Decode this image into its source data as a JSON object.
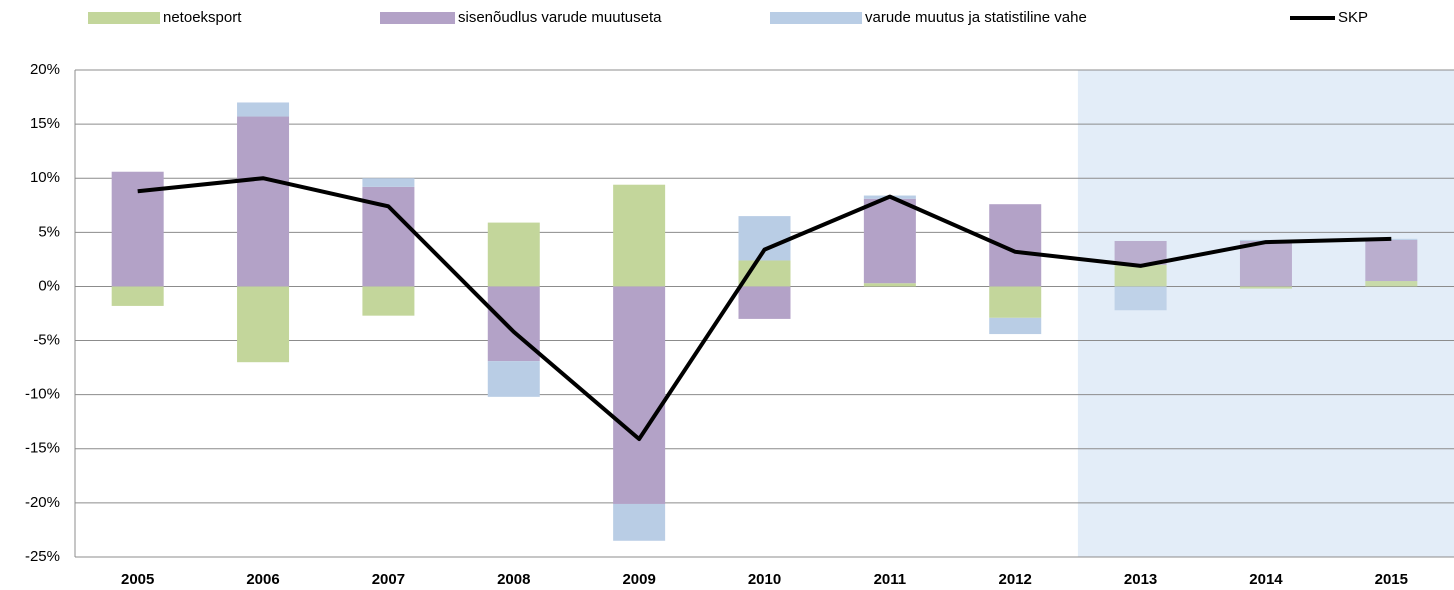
{
  "chart_data": {
    "type": "stacked_bar_line",
    "categories": [
      "2005",
      "2006",
      "2007",
      "2008",
      "2009",
      "2010",
      "2011",
      "2012",
      "2013",
      "2014",
      "2015"
    ],
    "series": [
      {
        "name": "netoeksport",
        "color": "#c3d69b",
        "values": [
          -1.8,
          -7.0,
          -2.7,
          5.9,
          9.4,
          2.4,
          0.3,
          -2.9,
          2.0,
          -0.2,
          0.5
        ]
      },
      {
        "name": "sisenõudlus varude muutuseta",
        "color": "#b3a2c7",
        "values": [
          10.6,
          15.7,
          9.2,
          -6.9,
          -20.1,
          -3.0,
          7.8,
          7.6,
          2.2,
          4.2,
          3.8
        ]
      },
      {
        "name": "varude muutus ja statistiline vahe",
        "color": "#b9cde5",
        "values": [
          0.0,
          1.3,
          0.8,
          -3.3,
          -3.4,
          4.1,
          0.3,
          -1.5,
          -2.2,
          0.1,
          0.1
        ]
      },
      {
        "name": "SKP",
        "color": "#000000",
        "type": "line",
        "values": [
          8.8,
          10.0,
          7.4,
          -4.2,
          -14.1,
          3.4,
          8.3,
          3.2,
          1.9,
          4.1,
          4.4
        ]
      }
    ],
    "ylim": [
      -25,
      20
    ],
    "yticks": [
      {
        "value": -25,
        "label": "-25%"
      },
      {
        "value": -20,
        "label": "-20%"
      },
      {
        "value": -15,
        "label": "-15%"
      },
      {
        "value": -10,
        "label": "-10%"
      },
      {
        "value": -5,
        "label": "-5%"
      },
      {
        "value": 0,
        "label": "0%"
      },
      {
        "value": 5,
        "label": "5%"
      },
      {
        "value": 10,
        "label": "10%"
      },
      {
        "value": 15,
        "label": "15%"
      },
      {
        "value": 20,
        "label": "20%"
      }
    ],
    "grid": true,
    "legend": "top"
  }
}
